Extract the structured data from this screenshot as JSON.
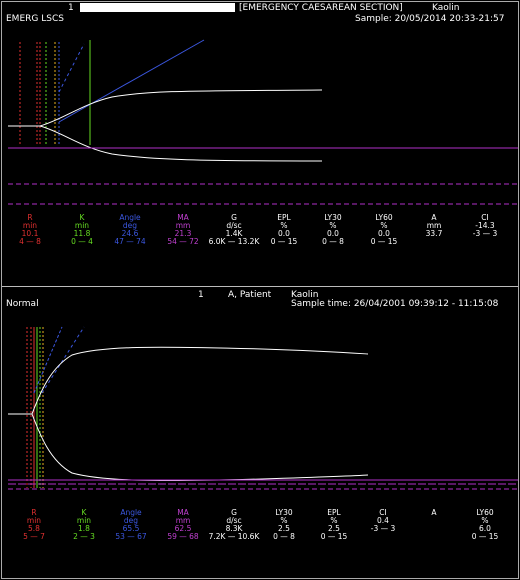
{
  "colors": {
    "R": "#e03030",
    "K": "#66dd22",
    "Angle": "#3b57e0",
    "MA": "#c040d0",
    "white": "#ffffff",
    "guide": "#b030c8"
  },
  "panel1": {
    "case_number": "1",
    "case_label": "[EMERGENCY CAESAREAN SECTION]",
    "activator": "Kaolin",
    "sample_line": "Sample: 20/05/2014 20:33-21:57",
    "sample_name": "EMERG LSCS",
    "params": [
      {
        "name": "R",
        "unit": "min",
        "value": "10.1",
        "range": "4 — 8",
        "color": "R"
      },
      {
        "name": "K",
        "unit": "min",
        "value": "11.8",
        "range": "0 — 4",
        "color": "K"
      },
      {
        "name": "Angle",
        "unit": "deg",
        "value": "24.6",
        "range": "47 — 74",
        "color": "Angle"
      },
      {
        "name": "MA",
        "unit": "mm",
        "value": "21.3",
        "range": "54 — 72",
        "color": "MA"
      },
      {
        "name": "G",
        "unit": "d/sc",
        "value": "1.4K",
        "range": "6.0K — 13.2K",
        "color": "white"
      },
      {
        "name": "EPL",
        "unit": "%",
        "value": "0.0",
        "range": "0 — 15",
        "color": "white"
      },
      {
        "name": "LY30",
        "unit": "%",
        "value": "0.0",
        "range": "0 — 8",
        "color": "white"
      },
      {
        "name": "LY60",
        "unit": "%",
        "value": "0.0",
        "range": "0 — 15",
        "color": "white"
      },
      {
        "name": "A",
        "unit": "mm",
        "value": "33.7",
        "range": "",
        "color": "white"
      },
      {
        "name": "CI",
        "unit": "",
        "value": "-14.3",
        "range": "-3 — 3",
        "color": "white"
      }
    ]
  },
  "panel2": {
    "case_number": "1",
    "patient_label": "A, Patient",
    "activator": "Kaolin",
    "sample_line": "Sample time: 26/04/2001 09:39:12 - 11:15:08",
    "sample_name": "Normal",
    "params": [
      {
        "name": "R",
        "unit": "min",
        "value": "5.8",
        "range": "5 — 7",
        "color": "R"
      },
      {
        "name": "K",
        "unit": "min",
        "value": "1.8",
        "range": "2 — 3",
        "color": "K"
      },
      {
        "name": "Angle",
        "unit": "deg",
        "value": "65.5",
        "range": "53 — 67",
        "color": "Angle"
      },
      {
        "name": "MA",
        "unit": "mm",
        "value": "62.5",
        "range": "59 — 68",
        "color": "MA"
      },
      {
        "name": "G",
        "unit": "d/sc",
        "value": "8.3K",
        "range": "7.2K — 10.6K",
        "color": "white"
      },
      {
        "name": "LY30",
        "unit": "%",
        "value": "2.5",
        "range": "0 — 8",
        "color": "white"
      },
      {
        "name": "EPL",
        "unit": "%",
        "value": "2.5",
        "range": "0 — 15",
        "color": "white"
      },
      {
        "name": "CI",
        "unit": "",
        "value": "0.4",
        "range": "-3 — 3",
        "color": "white"
      },
      {
        "name": "A",
        "unit": "",
        "value": "",
        "range": "",
        "color": "white"
      },
      {
        "name": "LY60",
        "unit": "%",
        "value": "6.0",
        "range": "0 — 15",
        "color": "white"
      }
    ]
  }
}
